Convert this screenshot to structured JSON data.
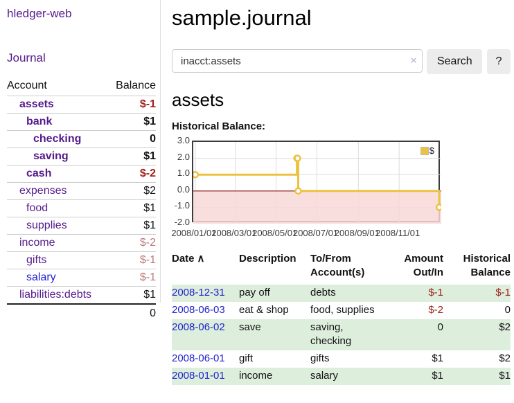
{
  "app": {
    "brand": "hledger-web",
    "nav_journal": "Journal"
  },
  "sidebar": {
    "header": {
      "account": "Account",
      "balance": "Balance"
    },
    "accounts": [
      {
        "name": "assets",
        "balance": "$-1",
        "level": 1,
        "bold": true,
        "neg": "strong"
      },
      {
        "name": "bank",
        "balance": "$1",
        "level": 2,
        "bold": true,
        "neg": "none"
      },
      {
        "name": "checking",
        "balance": "0",
        "level": 3,
        "bold": true,
        "neg": "none"
      },
      {
        "name": "saving",
        "balance": "$1",
        "level": 3,
        "bold": true,
        "neg": "none"
      },
      {
        "name": "cash",
        "balance": "$-2",
        "level": 2,
        "bold": true,
        "neg": "strong"
      },
      {
        "name": "expenses",
        "balance": "$2",
        "level": 1,
        "bold": false,
        "neg": "none"
      },
      {
        "name": "food",
        "balance": "$1",
        "level": 2,
        "bold": false,
        "neg": "none"
      },
      {
        "name": "supplies",
        "balance": "$1",
        "level": 2,
        "bold": false,
        "neg": "none"
      },
      {
        "name": "income",
        "balance": "$-2",
        "level": 1,
        "bold": false,
        "neg": "soft"
      },
      {
        "name": "gifts",
        "balance": "$-1",
        "level": 2,
        "bold": false,
        "neg": "soft"
      },
      {
        "name": "salary",
        "balance": "$-1",
        "level": 2,
        "bold": false,
        "neg": "soft",
        "link_color": "blue"
      },
      {
        "name": "liabilities:debts",
        "balance": "$1",
        "level": 1,
        "bold": false,
        "neg": "none"
      }
    ],
    "total": "0"
  },
  "header": {
    "title": "sample.journal"
  },
  "search": {
    "value": "inacct:assets",
    "clear_icon": "×",
    "button_label": "Search",
    "help_label": "?"
  },
  "account_page": {
    "heading": "assets",
    "chart_label": "Historical Balance:"
  },
  "chart_data": {
    "type": "line",
    "style": "steps",
    "title": "Historical Balance:",
    "series": [
      {
        "name": "$",
        "color": "#edc240",
        "points": [
          [
            "2008-01-01",
            1.0
          ],
          [
            "2008-06-01",
            2.0
          ],
          [
            "2008-06-02",
            2.0
          ],
          [
            "2008-06-03",
            0.0
          ],
          [
            "2008-12-31",
            -1.0
          ]
        ]
      }
    ],
    "yticks": [
      "3.0",
      "2.0",
      "1.0",
      "0.0",
      "-1.0",
      "-2.0"
    ],
    "xticks": [
      "2008/01/01",
      "2008/03/01",
      "2008/05/01",
      "2008/07/01",
      "2008/09/01",
      "2008/11/01"
    ],
    "ylim": [
      -2,
      3
    ],
    "xlim_days": [
      -3,
      368
    ],
    "epoch": "2008-01-01",
    "grid": true,
    "gridline_color": "#dcdcdc",
    "zero_line_color": "#871111",
    "negative_fill": "#f8d8d8",
    "marker_fill": "#ffffff",
    "legend_position": "top-right"
  },
  "register": {
    "sort_icon": "∧",
    "columns": [
      {
        "label": "Date",
        "align": "left",
        "sortable": true
      },
      {
        "label": "Description",
        "align": "left"
      },
      {
        "label": "To/From Account(s)",
        "align": "left"
      },
      {
        "label": "Amount Out/In",
        "align": "right"
      },
      {
        "label": "Historical Balance",
        "align": "right"
      }
    ],
    "rows": [
      {
        "date": "2008-12-31",
        "description": "pay off",
        "accounts": "debts",
        "amount": "$-1",
        "amount_negative": true,
        "balance": "$-1",
        "balance_negative": true
      },
      {
        "date": "2008-06-03",
        "description": "eat & shop",
        "accounts": "food, supplies",
        "amount": "$-2",
        "amount_negative": true,
        "balance": "0",
        "balance_negative": false
      },
      {
        "date": "2008-06-02",
        "description": "save",
        "accounts": "saving, checking",
        "amount": "0",
        "amount_negative": false,
        "balance": "$2",
        "balance_negative": false
      },
      {
        "date": "2008-06-01",
        "description": "gift",
        "accounts": "gifts",
        "amount": "$1",
        "amount_negative": false,
        "balance": "$2",
        "balance_negative": false
      },
      {
        "date": "2008-01-01",
        "description": "income",
        "accounts": "salary",
        "amount": "$1",
        "amount_negative": false,
        "balance": "$1",
        "balance_negative": false
      }
    ]
  }
}
